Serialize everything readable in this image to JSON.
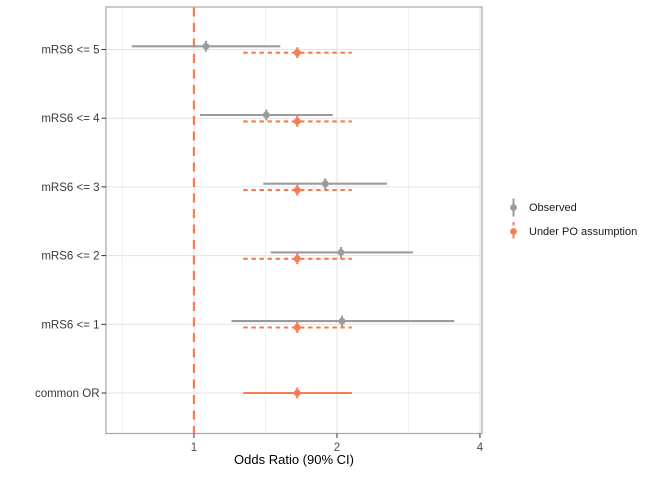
{
  "chart_data": {
    "type": "scatter",
    "subtype": "forest-pointrange",
    "title": "",
    "xlabel": "Odds Ratio (90% CI)",
    "ylabel": "",
    "x_scale": "log2",
    "xlim": [
      0.653,
      4.04
    ],
    "x_ticks": [
      1,
      2,
      4
    ],
    "x_tick_labels": [
      "1",
      "2",
      "4"
    ],
    "x_minor_gridlines": [
      0.7071,
      1.4142,
      2.8284
    ],
    "grid": true,
    "legend_position": "right",
    "reference_line": {
      "x": 1,
      "style": "dashed",
      "color": "#F67D53"
    },
    "categories": [
      "mRS6 <= 5",
      "mRS6 <= 4",
      "mRS6 <= 3",
      "mRS6 <= 2",
      "mRS6 <= 1",
      "common OR"
    ],
    "series": [
      {
        "name": "Observed",
        "color": "#9B9B9B",
        "line_style": "solid",
        "in_legend": true,
        "values": [
          {
            "lo": 0.74,
            "or": 1.06,
            "hi": 1.52
          },
          {
            "lo": 1.03,
            "or": 1.42,
            "hi": 1.96
          },
          {
            "lo": 1.4,
            "or": 1.89,
            "hi": 2.55
          },
          {
            "lo": 1.45,
            "or": 2.04,
            "hi": 2.89
          },
          {
            "lo": 1.2,
            "or": 2.05,
            "hi": 3.53
          },
          null
        ]
      },
      {
        "name": "Under PO assumption",
        "color": "#F67D53",
        "line_style": "dashed",
        "in_legend": true,
        "values": [
          {
            "lo": 1.27,
            "or": 1.65,
            "hi": 2.15
          },
          {
            "lo": 1.27,
            "or": 1.65,
            "hi": 2.15
          },
          {
            "lo": 1.27,
            "or": 1.65,
            "hi": 2.15
          },
          {
            "lo": 1.27,
            "or": 1.65,
            "hi": 2.15
          },
          {
            "lo": 1.27,
            "or": 1.65,
            "hi": 2.15
          },
          null
        ]
      },
      {
        "name": "common OR pooled estimate",
        "color": "#F67D53",
        "line_style": "solid",
        "in_legend": false,
        "values": [
          null,
          null,
          null,
          null,
          null,
          {
            "lo": 1.27,
            "or": 1.65,
            "hi": 2.15
          }
        ]
      }
    ]
  },
  "colors": {
    "observed": "#9B9B9B",
    "po": "#F67D53",
    "grid_major": "#E3E3E3",
    "grid_minor": "#F0F0F0",
    "panel_border": "#A9A9A9",
    "tick": "#333333",
    "axis_text": "#4D4D4D",
    "category_text": "#3A3A3A"
  }
}
